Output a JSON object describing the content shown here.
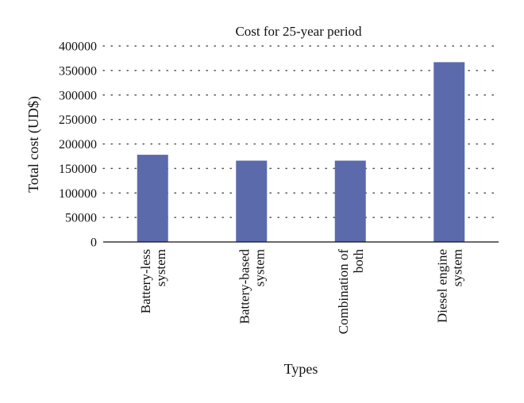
{
  "chart_data": {
    "type": "bar",
    "title": "Cost for 25-year period",
    "xlabel": "Types",
    "ylabel": "Total cost (UD$)",
    "categories": [
      [
        "Battery-less",
        "system"
      ],
      [
        "Battery-based",
        "system"
      ],
      [
        "Combination of",
        "both"
      ],
      [
        "Diesel engine",
        "system"
      ]
    ],
    "values": [
      178000,
      166000,
      166000,
      367000
    ],
    "ylim": [
      0,
      400000
    ],
    "yticks": [
      "0",
      "50000",
      "100000",
      "150000",
      "200000",
      "250000",
      "300000",
      "350000",
      "400000"
    ],
    "grid": true,
    "legend": "none",
    "bar_color": "#5b6aab"
  }
}
